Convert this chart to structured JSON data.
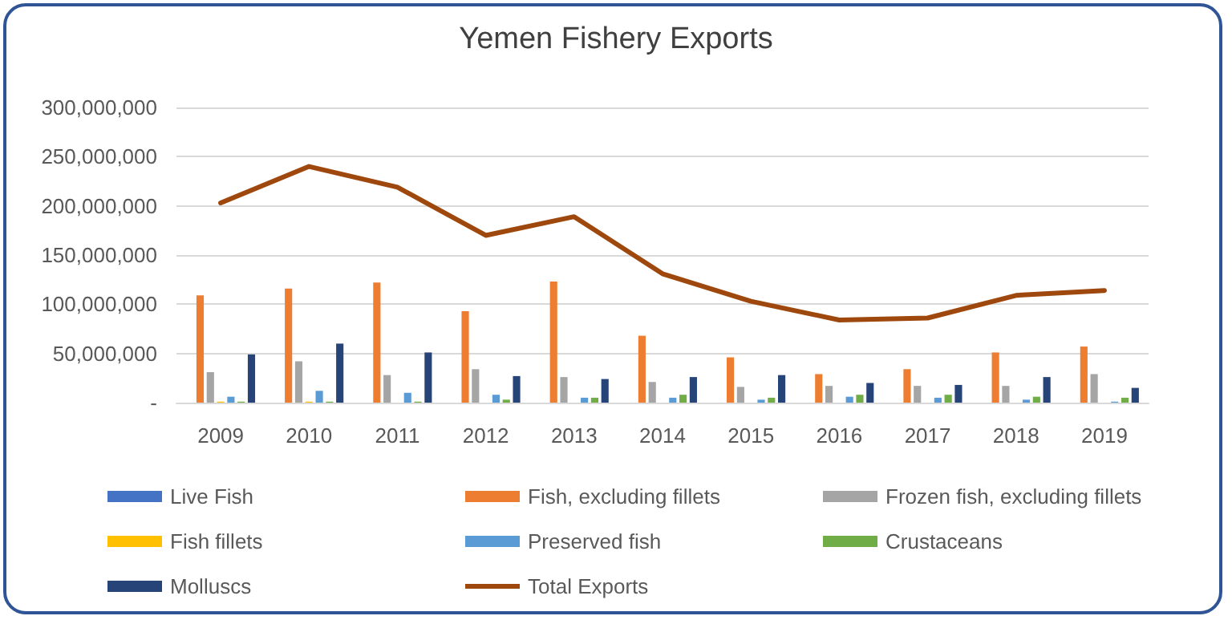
{
  "chart_data": {
    "type": "bar",
    "title": "Yemen Fishery Exports",
    "categories": [
      "2009",
      "2010",
      "2011",
      "2012",
      "2013",
      "2014",
      "2015",
      "2016",
      "2017",
      "2018",
      "2019"
    ],
    "series": [
      {
        "name": "Live Fish",
        "color": "#4472c4",
        "values": [
          0,
          0,
          0,
          0,
          0,
          0,
          0,
          0,
          0,
          0,
          0
        ]
      },
      {
        "name": "Fish, excluding fillets",
        "color": "#ed7d31",
        "values": [
          109000000,
          116000000,
          122000000,
          93000000,
          123000000,
          68000000,
          46000000,
          29000000,
          34000000,
          51000000,
          57000000
        ]
      },
      {
        "name": "Frozen fish, excluding fillets",
        "color": "#a5a5a5",
        "values": [
          31000000,
          42000000,
          28000000,
          34000000,
          26000000,
          21000000,
          16000000,
          17000000,
          17000000,
          17000000,
          29000000
        ]
      },
      {
        "name": "Fish fillets",
        "color": "#ffc000",
        "values": [
          1000000,
          1000000,
          0,
          0,
          0,
          0,
          0,
          0,
          0,
          0,
          0
        ]
      },
      {
        "name": "Preserved fish",
        "color": "#5b9bd5",
        "values": [
          6000000,
          12000000,
          10000000,
          8000000,
          5000000,
          5000000,
          3000000,
          6000000,
          5000000,
          3000000,
          1000000
        ]
      },
      {
        "name": "Crustaceans",
        "color": "#70ad47",
        "values": [
          1000000,
          1000000,
          1000000,
          3000000,
          5000000,
          8000000,
          5000000,
          8000000,
          8000000,
          6000000,
          5000000
        ]
      },
      {
        "name": "Molluscs",
        "color": "#264478",
        "values": [
          49000000,
          60000000,
          51000000,
          27000000,
          24000000,
          26000000,
          28000000,
          20000000,
          18000000,
          26000000,
          15000000
        ]
      },
      {
        "name": "Total Exports",
        "type": "line",
        "color": "#9e480e",
        "marker": "none",
        "values": [
          203000000,
          240000000,
          219000000,
          170000000,
          189000000,
          131000000,
          103000000,
          84000000,
          86000000,
          109000000,
          114000000
        ]
      }
    ],
    "ylim": [
      0,
      300000000
    ],
    "yticks": [
      {
        "value": 0,
        "label": "-"
      },
      {
        "value": 50000000,
        "label": "50,000,000"
      },
      {
        "value": 100000000,
        "label": "100,000,000"
      },
      {
        "value": 150000000,
        "label": "150,000,000"
      },
      {
        "value": 200000000,
        "label": "200,000,000"
      },
      {
        "value": 250000000,
        "label": "250,000,000"
      },
      {
        "value": 300000000,
        "label": "300,000,000"
      }
    ],
    "grid": "y",
    "legend": "bottom"
  }
}
